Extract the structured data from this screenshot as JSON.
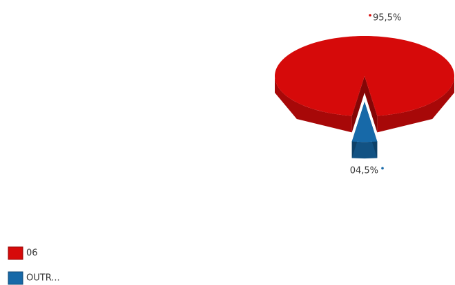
{
  "chart_data": {
    "type": "pie",
    "categories": [
      "06",
      "OUTR..."
    ],
    "values": [
      95.5,
      4.5
    ],
    "value_labels": [
      "95,5%",
      "04,5%"
    ],
    "colors": [
      "#d60a0a",
      "#1769a8"
    ],
    "legend": "bottom-left"
  }
}
